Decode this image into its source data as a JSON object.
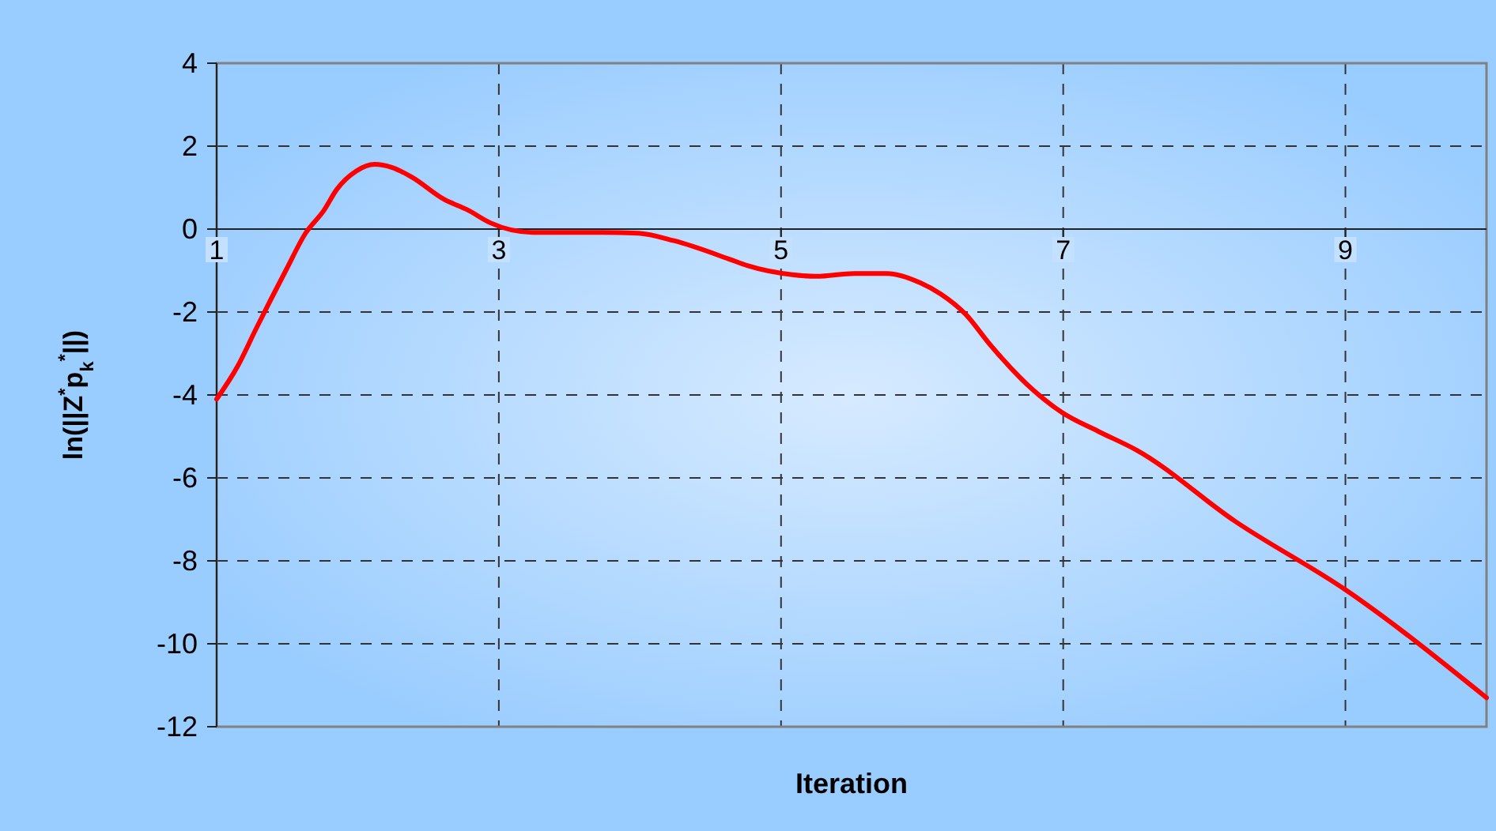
{
  "chart_data": {
    "type": "line",
    "xlabel": "Iteration",
    "ylabel": "ln(||Z$^{*}$p$_{k}$$^{*}$||)",
    "xlim": [
      1,
      10
    ],
    "xticks": [
      1,
      3,
      5,
      7,
      9
    ],
    "ylim": [
      -12,
      4
    ],
    "yticks": [
      -12,
      -10,
      -8,
      -6,
      -4,
      -2,
      0,
      2,
      4
    ],
    "grid": true,
    "line_style": "solid",
    "marker": "none",
    "series": [
      {
        "color": "#ff0000",
        "x": [
          1,
          1.15,
          1.28,
          1.49,
          1.63,
          1.76,
          1.85,
          1.99,
          2.12,
          2.24,
          2.38,
          2.61,
          2.78,
          2.94,
          3.24,
          3.73,
          3.99,
          4.24,
          4.63,
          4.76,
          5.08,
          5.25,
          5.52,
          5.75,
          5.99,
          6.13,
          6.31,
          6.48,
          6.79,
          6.99,
          7.25,
          7.52,
          8.22,
          9.01,
          10
        ],
        "values": [
          -4.1,
          -3.3,
          -2.4,
          -1.0,
          -0.1,
          0.45,
          0.95,
          1.4,
          1.56,
          1.49,
          1.26,
          0.72,
          0.46,
          0.15,
          -0.08,
          -0.08,
          -0.1,
          -0.28,
          -0.72,
          -0.88,
          -1.1,
          -1.14,
          -1.07,
          -1.07,
          -1.3,
          -1.56,
          -2.06,
          -2.78,
          -3.89,
          -4.42,
          -4.88,
          -5.33,
          -7.05,
          -8.72,
          -11.3
        ]
      }
    ]
  }
}
